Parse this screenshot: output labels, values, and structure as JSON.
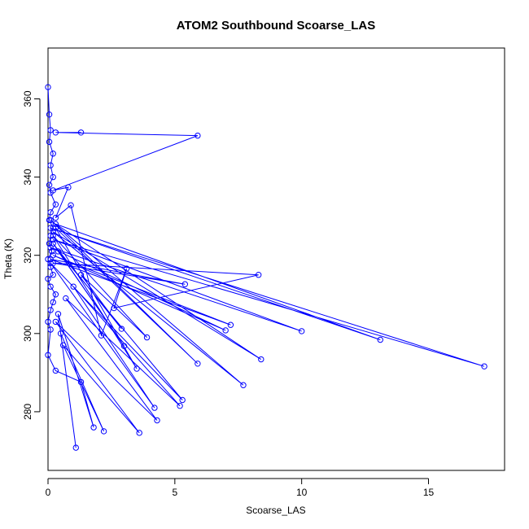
{
  "chart_data": {
    "type": "line",
    "title": "ATOM2 Southbound Scoarse_LAS",
    "xlabel": "Scoarse_LAS",
    "ylabel": "Theta (K)",
    "xlim": [
      0,
      18
    ],
    "ylim": [
      265,
      373
    ],
    "xticks": [
      0,
      5,
      10,
      15
    ],
    "yticks": [
      280,
      300,
      320,
      340,
      360
    ],
    "grid": false,
    "legend": "none",
    "series_color": "#0000ff",
    "marker": "open-circle",
    "series": [
      {
        "points": [
          [
            0.0,
            363
          ],
          [
            0.05,
            356
          ],
          [
            0.1,
            352
          ],
          [
            0.05,
            349
          ],
          [
            0.2,
            346
          ],
          [
            0.1,
            343
          ],
          [
            0.2,
            340
          ],
          [
            0.05,
            338
          ],
          [
            0.1,
            336
          ],
          [
            0.3,
            333
          ],
          [
            0.1,
            331
          ],
          [
            0.05,
            329
          ],
          [
            0.2,
            327
          ],
          [
            0.1,
            325
          ],
          [
            0.05,
            323
          ],
          [
            0.15,
            321
          ],
          [
            0.0,
            319
          ],
          [
            0.1,
            317
          ],
          [
            0.2,
            315
          ],
          [
            0.0,
            314
          ],
          [
            0.1,
            312
          ],
          [
            0.3,
            310
          ],
          [
            0.2,
            308
          ],
          [
            0.1,
            306
          ],
          [
            0.0,
            303
          ],
          [
            0.1,
            301
          ],
          [
            0.0,
            294.5
          ],
          [
            0.3,
            290.5
          ],
          [
            1.3,
            287.6
          ],
          [
            1.8,
            276
          ],
          [
            0.4,
            305
          ],
          [
            1.1,
            270.8
          ],
          [
            0.5,
            300
          ],
          [
            2.2,
            275
          ],
          [
            0.6,
            297
          ],
          [
            3.6,
            274.6
          ],
          [
            0.3,
            303
          ],
          [
            4.3,
            277.8
          ],
          [
            0.7,
            309
          ],
          [
            5.2,
            281.5
          ],
          [
            1.0,
            312
          ],
          [
            4.2,
            281
          ],
          [
            0.1,
            318
          ],
          [
            5.3,
            283
          ],
          [
            0.4,
            321
          ],
          [
            3.0,
            296.8
          ],
          [
            0.2,
            323
          ],
          [
            2.9,
            301.2
          ],
          [
            1.3,
            315
          ],
          [
            3.9,
            299
          ],
          [
            0.2,
            325
          ],
          [
            3.5,
            291
          ],
          [
            0.3,
            327
          ],
          [
            5.9,
            292.3
          ],
          [
            0.1,
            329
          ],
          [
            7.7,
            286.8
          ],
          [
            0.2,
            326
          ],
          [
            8.4,
            293.4
          ],
          [
            0.3,
            328
          ],
          [
            13.1,
            298.4
          ],
          [
            0.1,
            327
          ],
          [
            17.2,
            291.6
          ],
          [
            0.2,
            324
          ],
          [
            10.0,
            300.6
          ],
          [
            0.1,
            322
          ],
          [
            7.0,
            300.8
          ],
          [
            0.2,
            320
          ],
          [
            7.2,
            302.2
          ],
          [
            0.1,
            319
          ],
          [
            5.4,
            312.6
          ],
          [
            0.2,
            318
          ],
          [
            8.3,
            315
          ],
          [
            2.6,
            306.5
          ],
          [
            3.1,
            316.6
          ],
          [
            2.1,
            299.5
          ],
          [
            0.9,
            332.8
          ],
          [
            0.3,
            329.6
          ],
          [
            0.8,
            337.4
          ],
          [
            0.2,
            336.6
          ],
          [
            5.9,
            350.6
          ],
          [
            0.3,
            351.4
          ],
          [
            1.3,
            351.4
          ]
        ]
      }
    ]
  }
}
